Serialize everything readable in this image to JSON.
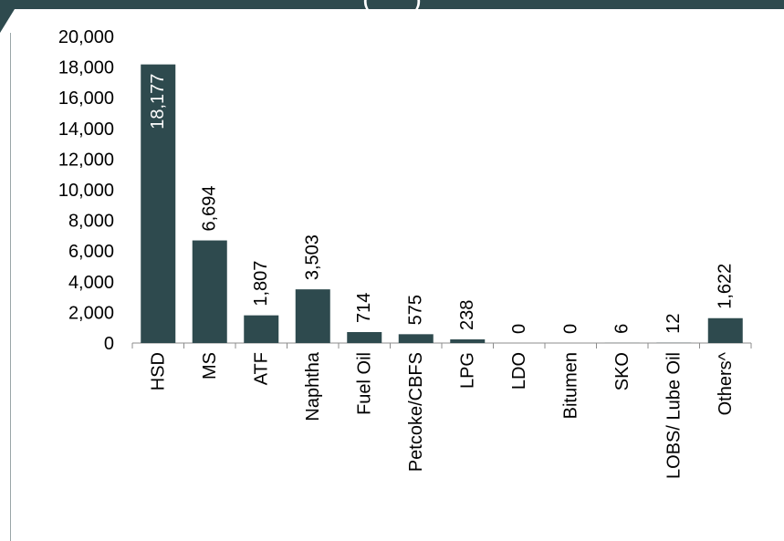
{
  "header": {
    "title_fragment": "(         )",
    "band_color": "#2e4a4e"
  },
  "chart_data": {
    "type": "bar",
    "title": "",
    "xlabel": "",
    "ylabel": "",
    "categories": [
      "HSD",
      "MS",
      "ATF",
      "Naphtha",
      "Fuel Oil",
      "Petcoke/CBFS",
      "LPG",
      "LDO",
      "Bitumen",
      "SKO",
      "LOBS/ Lube Oil",
      "Others^"
    ],
    "values": [
      18177,
      6694,
      1807,
      3503,
      714,
      575,
      238,
      0,
      0,
      6,
      12,
      1622
    ],
    "value_labels": [
      "18,177",
      "6,694",
      "1,807",
      "3,503",
      "714",
      "575",
      "238",
      "0",
      "0",
      "6",
      "12",
      "1,622"
    ],
    "ylim": [
      0,
      20000
    ],
    "yticks": [
      0,
      2000,
      4000,
      6000,
      8000,
      10000,
      12000,
      14000,
      16000,
      18000,
      20000
    ],
    "ytick_labels": [
      "0",
      "2,000",
      "4,000",
      "6,000",
      "8,000",
      "10,000",
      "12,000",
      "14,000",
      "16,000",
      "18,000",
      "20,000"
    ],
    "bar_color": "#2e4a4e",
    "grid": false,
    "legend": "none"
  }
}
